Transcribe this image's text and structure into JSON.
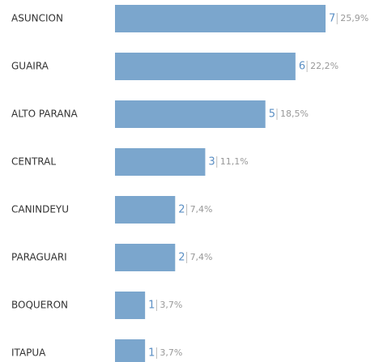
{
  "chart_data": {
    "type": "bar",
    "orientation": "horizontal",
    "categories": [
      "ASUNCION",
      "GUAIRA",
      "ALTO PARANA",
      "CENTRAL",
      "CANINDEYU",
      "PARAGUARI",
      "BOQUERON",
      "ITAPUA"
    ],
    "values": [
      7,
      6,
      5,
      3,
      2,
      2,
      1,
      1
    ],
    "percents": [
      25.9,
      22.2,
      18.5,
      11.1,
      7.4,
      7.4,
      3.7,
      3.7
    ],
    "percent_labels": [
      "25,9%",
      "22,2%",
      "18,5%",
      "11,1%",
      "7,4%",
      "7,4%",
      "3,7%",
      "3,7%"
    ],
    "color": "#7ba6cd",
    "xlim": [
      0,
      7
    ]
  }
}
